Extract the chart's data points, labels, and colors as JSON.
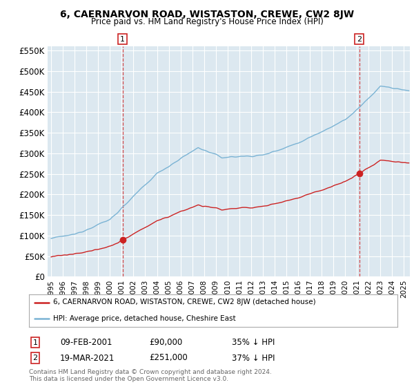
{
  "title": "6, CAERNARVON ROAD, WISTASTON, CREWE, CW2 8JW",
  "subtitle": "Price paid vs. HM Land Registry's House Price Index (HPI)",
  "sale1_date": "09-FEB-2001",
  "sale1_price": 90000,
  "sale1_label": "35% ↓ HPI",
  "sale2_date": "19-MAR-2021",
  "sale2_price": 251000,
  "sale2_label": "37% ↓ HPI",
  "legend_line1": "6, CAERNARVON ROAD, WISTASTON, CREWE, CW2 8JW (detached house)",
  "legend_line2": "HPI: Average price, detached house, Cheshire East",
  "footnote": "Contains HM Land Registry data © Crown copyright and database right 2024.\nThis data is licensed under the Open Government Licence v3.0.",
  "hpi_color": "#7ab3d4",
  "price_color": "#cc2222",
  "fig_bg": "#ffffff",
  "plot_bg": "#dce8f0",
  "ylim": [
    0,
    560000
  ],
  "yticks": [
    0,
    50000,
    100000,
    150000,
    200000,
    250000,
    300000,
    350000,
    400000,
    450000,
    500000,
    550000
  ],
  "xstart": 1994.7,
  "xend": 2025.5,
  "sale1_x": 2001.08,
  "sale2_x": 2021.2
}
